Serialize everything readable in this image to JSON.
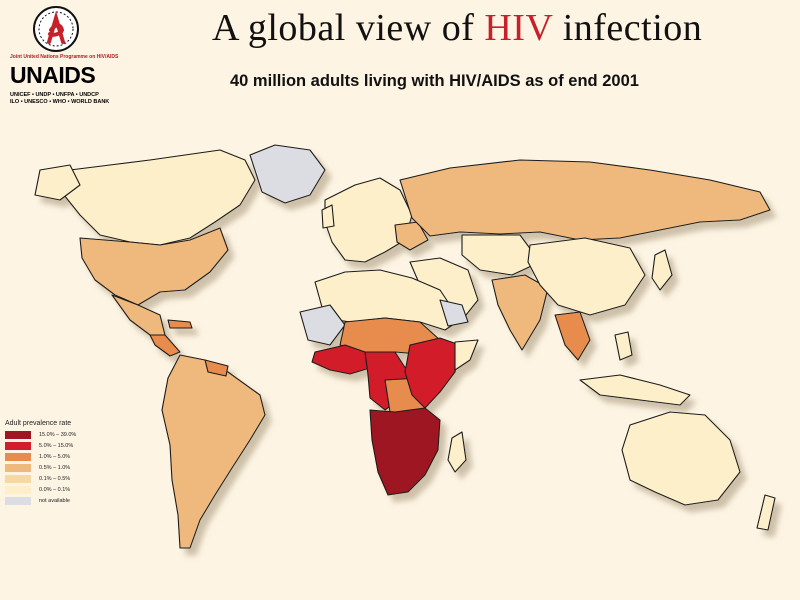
{
  "logo": {
    "caption": "Joint United Nations Programme on HIV/AIDS",
    "name": "UNAIDS",
    "cosponsors_line1": "UNICEF • UNDP • UNFPA • UNDCP",
    "cosponsors_line2": "ILO • UNESCO • WHO • WORLD BANK"
  },
  "title": {
    "prefix": "A global view of ",
    "highlight": "HIV",
    "suffix": " infection"
  },
  "subtitle": "40 million adults living with HIV/AIDS as of end 2001",
  "legend": {
    "title": "Adult prevalence rate",
    "items": [
      {
        "label": "15.0%  –  39.0%",
        "color": "#9e1622"
      },
      {
        "label": "5.0%  –  15.0%",
        "color": "#d21e2b"
      },
      {
        "label": "1.0%  –  5.0%",
        "color": "#e78c4e"
      },
      {
        "label": "0.5%  –  1.0%",
        "color": "#efb97e"
      },
      {
        "label": "0.1%  –  0.5%",
        "color": "#f6d8a3"
      },
      {
        "label": "0.0%  –  0.1%",
        "color": "#fcefc9"
      },
      {
        "label": "not available",
        "color": "#dcdde2"
      }
    ]
  },
  "colors": {
    "very_high": "#9e1622",
    "high": "#d21e2b",
    "medium": "#e78c4e",
    "mid_low": "#efb97e",
    "low": "#f6d8a3",
    "very_low": "#fcefc9",
    "not_available": "#dcdde2",
    "background": "#fdf4e3"
  }
}
